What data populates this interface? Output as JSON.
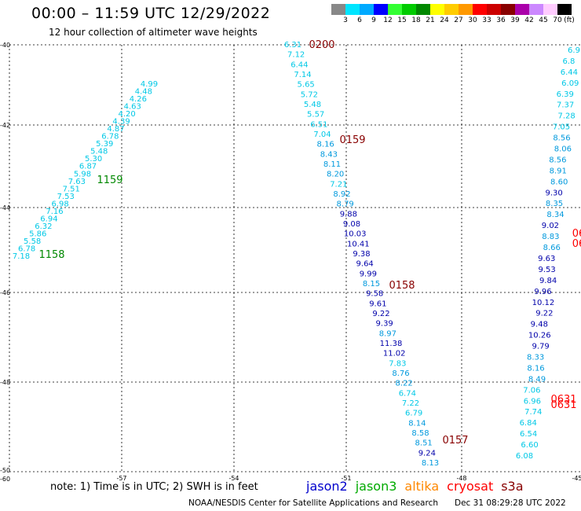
{
  "title": "00:00 – 11:59 UTC 12/29/2022",
  "subtitle": "12 hour collection of altimeter wave heights",
  "legend": {
    "unit": "(ft)",
    "bins": [
      {
        "label": "3",
        "color": "#888888"
      },
      {
        "label": "6",
        "color": "#00e5ff"
      },
      {
        "label": "9",
        "color": "#00aaff"
      },
      {
        "label": "12",
        "color": "#0000ff"
      },
      {
        "label": "15",
        "color": "#33ff33"
      },
      {
        "label": "18",
        "color": "#00cc00"
      },
      {
        "label": "21",
        "color": "#008800"
      },
      {
        "label": "24",
        "color": "#ffff00"
      },
      {
        "label": "27",
        "color": "#ffcc00"
      },
      {
        "label": "30",
        "color": "#ff9900"
      },
      {
        "label": "33",
        "color": "#ff0000"
      },
      {
        "label": "36",
        "color": "#cc0000"
      },
      {
        "label": "39",
        "color": "#880000"
      },
      {
        "label": "42",
        "color": "#aa00aa"
      },
      {
        "label": "45",
        "color": "#cc88ff"
      },
      {
        "label": "70",
        "color": "#ffccff"
      },
      {
        "label": "",
        "color": "#000000"
      }
    ]
  },
  "axes": {
    "lat_ticks": [
      "-40",
      "-42",
      "-44",
      "-46",
      "-48",
      "-50"
    ],
    "lat_top_label": "-40",
    "lon_ticks": [
      "-57",
      "-54",
      "-51",
      "-48",
      "-45"
    ],
    "corner_label": "-60"
  },
  "colors": {
    "cyan": "#00c8e6",
    "blue": "#0099dd",
    "navy": "#0000aa",
    "green": "#008800",
    "darkred": "#880000",
    "red": "#ff0000"
  },
  "tracks": [
    {
      "name": "left-track",
      "points": [
        {
          "v": "4.99",
          "c": "cyan"
        },
        {
          "v": "4.48",
          "c": "cyan"
        },
        {
          "v": "4.26",
          "c": "cyan"
        },
        {
          "v": "4.63",
          "c": "cyan"
        },
        {
          "v": "4.20",
          "c": "cyan"
        },
        {
          "v": "4.39",
          "c": "cyan"
        },
        {
          "v": "4.87",
          "c": "cyan"
        },
        {
          "v": "6.78",
          "c": "cyan"
        },
        {
          "v": "5.39",
          "c": "cyan"
        },
        {
          "v": "5.48",
          "c": "cyan"
        },
        {
          "v": "5.30",
          "c": "cyan"
        },
        {
          "v": "6.87",
          "c": "cyan"
        },
        {
          "v": "5.98",
          "c": "cyan"
        },
        {
          "v": "7.63",
          "c": "cyan"
        },
        {
          "v": "7.51",
          "c": "cyan"
        },
        {
          "v": "7.53",
          "c": "cyan"
        },
        {
          "v": "6.98",
          "c": "cyan"
        },
        {
          "v": "7.16",
          "c": "cyan"
        },
        {
          "v": "6.94",
          "c": "cyan"
        },
        {
          "v": "6.32",
          "c": "cyan"
        },
        {
          "v": "5.86",
          "c": "cyan"
        },
        {
          "v": "5.58",
          "c": "cyan"
        },
        {
          "v": "6.78",
          "c": "cyan"
        },
        {
          "v": "7.18",
          "c": "cyan"
        }
      ]
    },
    {
      "name": "center-track",
      "points": [
        {
          "v": "6.31",
          "c": "cyan"
        },
        {
          "v": "7.12",
          "c": "cyan"
        },
        {
          "v": "6.44",
          "c": "cyan"
        },
        {
          "v": "7.14",
          "c": "cyan"
        },
        {
          "v": "5.65",
          "c": "cyan"
        },
        {
          "v": "5.72",
          "c": "cyan"
        },
        {
          "v": "5.48",
          "c": "cyan"
        },
        {
          "v": "5.57",
          "c": "cyan"
        },
        {
          "v": "6.51",
          "c": "cyan"
        },
        {
          "v": "7.04",
          "c": "cyan"
        },
        {
          "v": "8.16",
          "c": "blue"
        },
        {
          "v": "8.43",
          "c": "blue"
        },
        {
          "v": "8.11",
          "c": "blue"
        },
        {
          "v": "8.20",
          "c": "blue"
        },
        {
          "v": "7.21",
          "c": "cyan"
        },
        {
          "v": "8.92",
          "c": "blue"
        },
        {
          "v": "8.79",
          "c": "blue"
        },
        {
          "v": "9.88",
          "c": "navy"
        },
        {
          "v": "9.08",
          "c": "navy"
        },
        {
          "v": "10.03",
          "c": "navy"
        },
        {
          "v": "10.41",
          "c": "navy"
        },
        {
          "v": "9.38",
          "c": "navy"
        },
        {
          "v": "9.64",
          "c": "navy"
        },
        {
          "v": "9.99",
          "c": "navy"
        },
        {
          "v": "8.15",
          "c": "blue"
        },
        {
          "v": "9.58",
          "c": "navy"
        },
        {
          "v": "9.61",
          "c": "navy"
        },
        {
          "v": "9.22",
          "c": "navy"
        },
        {
          "v": "9.39",
          "c": "navy"
        },
        {
          "v": "8.97",
          "c": "blue"
        },
        {
          "v": "11.38",
          "c": "navy"
        },
        {
          "v": "11.02",
          "c": "navy"
        },
        {
          "v": "7.83",
          "c": "cyan"
        },
        {
          "v": "8.76",
          "c": "blue"
        },
        {
          "v": "8.22",
          "c": "blue"
        },
        {
          "v": "6.74",
          "c": "cyan"
        },
        {
          "v": "7.22",
          "c": "cyan"
        },
        {
          "v": "6.79",
          "c": "cyan"
        },
        {
          "v": "8.14",
          "c": "blue"
        },
        {
          "v": "8.58",
          "c": "blue"
        },
        {
          "v": "8.51",
          "c": "blue"
        },
        {
          "v": "9.24",
          "c": "navy"
        },
        {
          "v": "8.13",
          "c": "blue"
        }
      ]
    },
    {
      "name": "right-track",
      "points": [
        {
          "v": "6.9",
          "c": "cyan"
        },
        {
          "v": "6.8",
          "c": "cyan"
        },
        {
          "v": "6.44",
          "c": "cyan"
        },
        {
          "v": "6.09",
          "c": "cyan"
        },
        {
          "v": "6.39",
          "c": "cyan"
        },
        {
          "v": "7.37",
          "c": "cyan"
        },
        {
          "v": "7.28",
          "c": "cyan"
        },
        {
          "v": "7.05",
          "c": "cyan"
        },
        {
          "v": "8.56",
          "c": "blue"
        },
        {
          "v": "8.06",
          "c": "blue"
        },
        {
          "v": "8.56",
          "c": "blue"
        },
        {
          "v": "8.91",
          "c": "blue"
        },
        {
          "v": "8.60",
          "c": "blue"
        },
        {
          "v": "9.30",
          "c": "navy"
        },
        {
          "v": "8.35",
          "c": "blue"
        },
        {
          "v": "8.34",
          "c": "blue"
        },
        {
          "v": "9.02",
          "c": "navy"
        },
        {
          "v": "8.83",
          "c": "blue"
        },
        {
          "v": "8.66",
          "c": "blue"
        },
        {
          "v": "9.63",
          "c": "navy"
        },
        {
          "v": "9.53",
          "c": "navy"
        },
        {
          "v": "9.84",
          "c": "navy"
        },
        {
          "v": "9.96",
          "c": "navy"
        },
        {
          "v": "10.12",
          "c": "navy"
        },
        {
          "v": "9.22",
          "c": "navy"
        },
        {
          "v": "9.48",
          "c": "navy"
        },
        {
          "v": "10.26",
          "c": "navy"
        },
        {
          "v": "9.79",
          "c": "navy"
        },
        {
          "v": "8.33",
          "c": "blue"
        },
        {
          "v": "8.16",
          "c": "blue"
        },
        {
          "v": "8.49",
          "c": "blue"
        },
        {
          "v": "7.06",
          "c": "cyan"
        },
        {
          "v": "6.96",
          "c": "cyan"
        },
        {
          "v": "7.74",
          "c": "cyan"
        },
        {
          "v": "6.84",
          "c": "cyan"
        },
        {
          "v": "6.54",
          "c": "cyan"
        },
        {
          "v": "6.60",
          "c": "cyan"
        },
        {
          "v": "6.08",
          "c": "cyan"
        }
      ]
    }
  ],
  "time_labels": [
    {
      "t": "1159",
      "c": "green"
    },
    {
      "t": "1158",
      "c": "green"
    },
    {
      "t": "0200",
      "c": "darkred"
    },
    {
      "t": "0159",
      "c": "darkred"
    },
    {
      "t": "0158",
      "c": "darkred"
    },
    {
      "t": "0157",
      "c": "darkred"
    },
    {
      "t": "0631",
      "c": "red"
    },
    {
      "t": "0631",
      "c": "red"
    },
    {
      "t": "06",
      "c": "red"
    },
    {
      "t": "06",
      "c": "red"
    }
  ],
  "note": "note:  1) Time is in UTC; 2) SWH is in feet",
  "satellites": [
    {
      "name": "jason2",
      "color": "#0000cc"
    },
    {
      "name": "jason3",
      "color": "#00aa00"
    },
    {
      "name": "altika",
      "color": "#ff8800"
    },
    {
      "name": "cryosat",
      "color": "#ff0000"
    },
    {
      "name": "s3a",
      "color": "#880000"
    }
  ],
  "credit": "NOAA/NESDIS Center for Satellite Applications and Research",
  "stamp": "Dec 31 08:29:28 UTC 2022"
}
